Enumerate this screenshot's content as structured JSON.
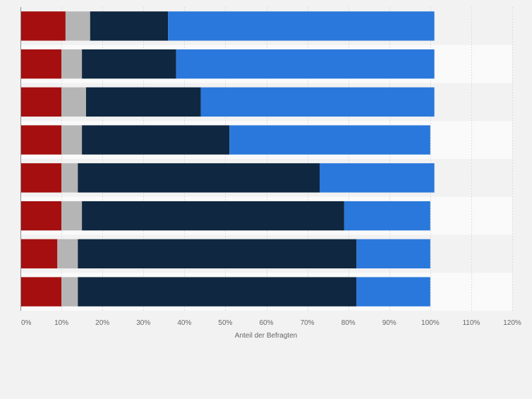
{
  "chart_data": {
    "type": "bar",
    "orientation": "horizontal",
    "stacked": true,
    "title": "",
    "xlabel": "Anteil der Befragten",
    "ylabel": "",
    "xlim": [
      0,
      120
    ],
    "xticks": [
      "0%",
      "10%",
      "20%",
      "30%",
      "40%",
      "50%",
      "60%",
      "70%",
      "80%",
      "90%",
      "100%",
      "110%",
      "120%"
    ],
    "grid": true,
    "legend": "none",
    "series_colors": [
      "#a50f0f",
      "#b5b5b5",
      "#0f2740",
      "#2a78db"
    ],
    "rows": [
      [
        11,
        6,
        19,
        65
      ],
      [
        10,
        5,
        23,
        63
      ],
      [
        10,
        6,
        28,
        57
      ],
      [
        10,
        5,
        36,
        49
      ],
      [
        10,
        4,
        59,
        28
      ],
      [
        10,
        5,
        64,
        21
      ],
      [
        9,
        5,
        68,
        18
      ],
      [
        10,
        4,
        68,
        18
      ]
    ]
  }
}
